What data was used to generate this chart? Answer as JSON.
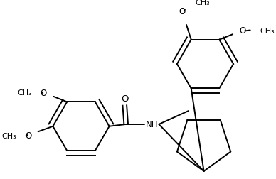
{
  "background": "#ffffff",
  "line_color": "#000000",
  "lw": 1.4,
  "fs": 8.5,
  "figsize": [
    3.88,
    2.53
  ],
  "dpi": 100,
  "xlim": [
    0,
    388
  ],
  "ylim": [
    0,
    253
  ]
}
